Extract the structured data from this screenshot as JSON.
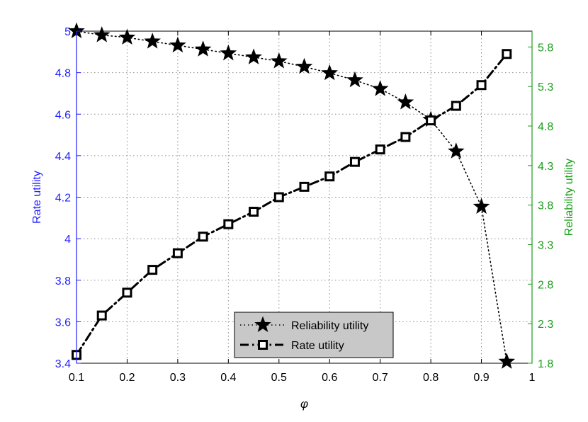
{
  "chart_data": {
    "type": "line",
    "xlabel": "φ",
    "xlim": [
      0.1,
      1
    ],
    "xticks": [
      "0.1",
      "0.2",
      "0.3",
      "0.4",
      "0.5",
      "0.6",
      "0.7",
      "0.8",
      "0.9",
      "1"
    ],
    "y_left": {
      "label": "Rate utility",
      "color": "#1f1fff",
      "lim": [
        3.4,
        5.0
      ],
      "ticks": [
        "3.4",
        "3.6",
        "3.8",
        "4",
        "4.2",
        "4.4",
        "4.6",
        "4.8",
        "5"
      ]
    },
    "y_right": {
      "label": "Reliability utility",
      "color": "#1a9e1a",
      "lim": [
        1.8,
        6.0
      ],
      "ticks": [
        "1.8",
        "2.3",
        "2.8",
        "3.3",
        "3.8",
        "4.3",
        "4.8",
        "5.3",
        "5.8"
      ]
    },
    "grid": true,
    "legend_position": "bottom-center",
    "series": [
      {
        "name": "Reliability utility",
        "axis": "right",
        "marker": "star",
        "line_style": "dotted",
        "x": [
          0.1,
          0.15,
          0.2,
          0.25,
          0.3,
          0.35,
          0.4,
          0.45,
          0.5,
          0.55,
          0.6,
          0.65,
          0.7,
          0.75,
          0.8,
          0.85,
          0.9,
          0.95
        ],
        "y": [
          6.0,
          5.95,
          5.92,
          5.87,
          5.82,
          5.77,
          5.72,
          5.67,
          5.62,
          5.55,
          5.47,
          5.38,
          5.27,
          5.1,
          4.88,
          4.48,
          3.78,
          1.82
        ]
      },
      {
        "name": "Rate utility",
        "axis": "left",
        "marker": "square",
        "line_style": "dashdot",
        "x": [
          0.1,
          0.15,
          0.2,
          0.25,
          0.3,
          0.35,
          0.4,
          0.45,
          0.5,
          0.55,
          0.6,
          0.65,
          0.7,
          0.75,
          0.8,
          0.85,
          0.9,
          0.95
        ],
        "y": [
          3.44,
          3.63,
          3.74,
          3.85,
          3.93,
          4.01,
          4.07,
          4.13,
          4.2,
          4.25,
          4.3,
          4.37,
          4.43,
          4.49,
          4.57,
          4.64,
          4.74,
          4.89
        ]
      }
    ]
  }
}
